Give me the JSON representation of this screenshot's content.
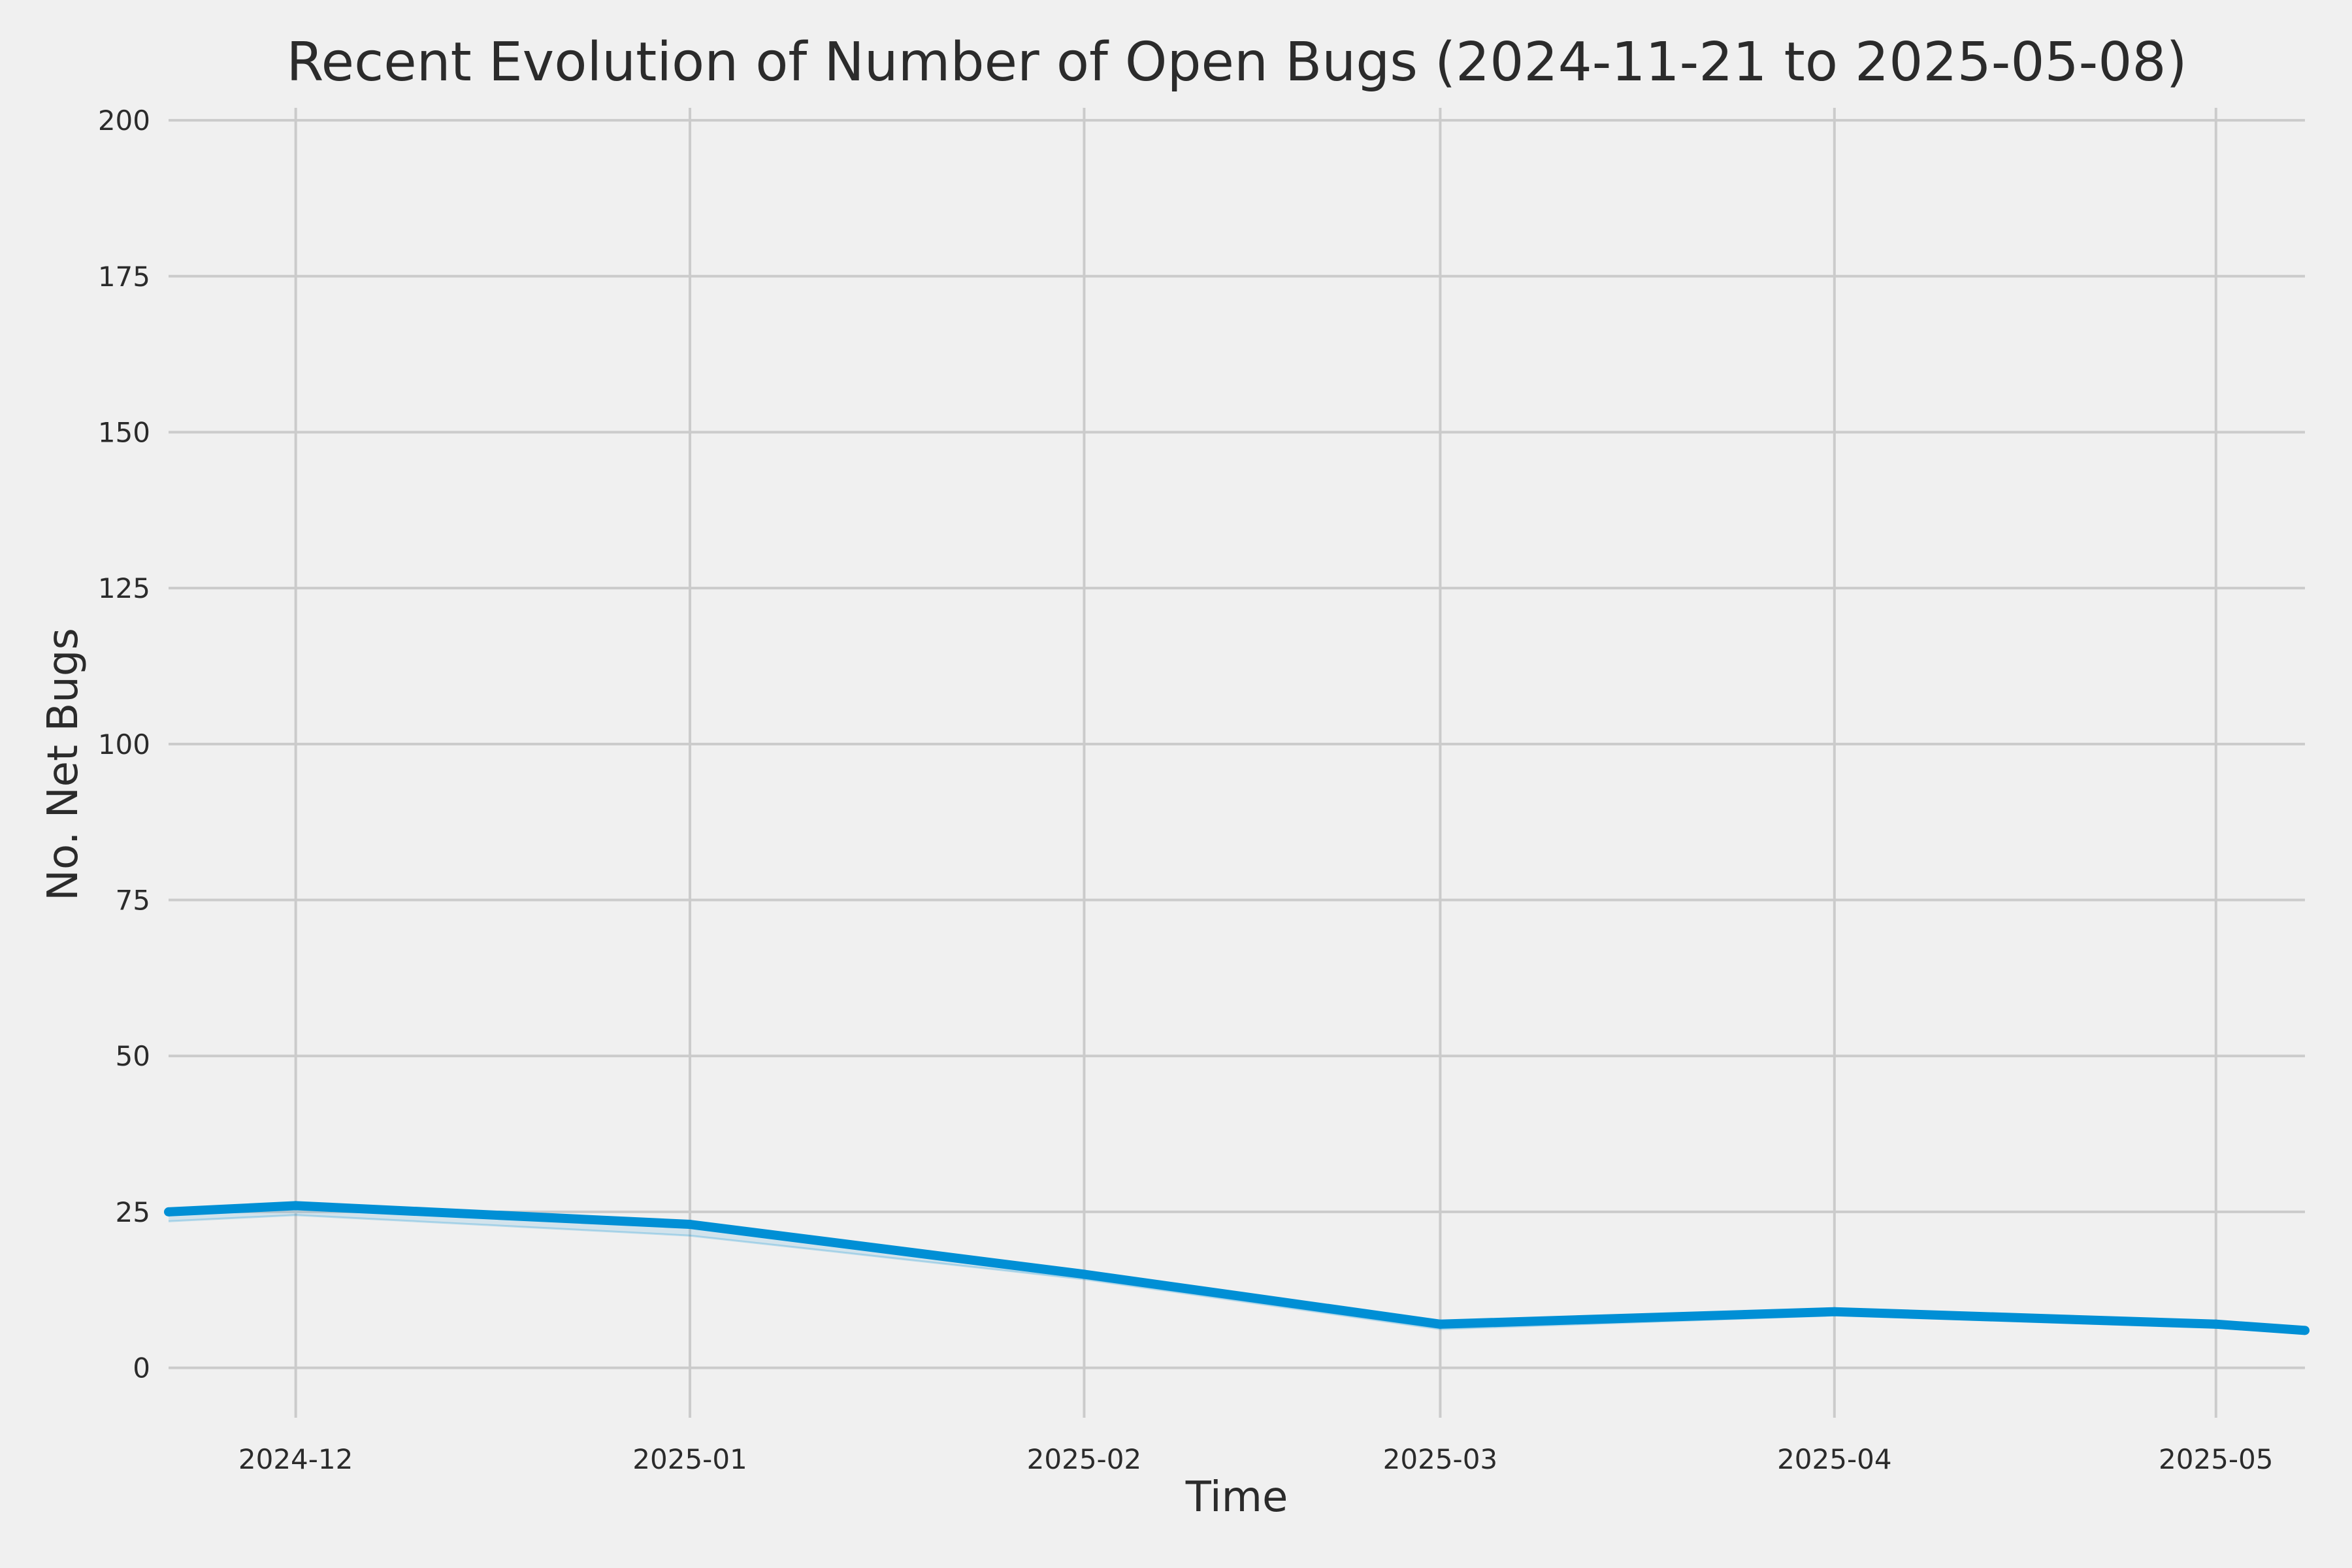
{
  "chart_data": {
    "type": "line",
    "title": "Recent Evolution of Number of Open Bugs (2024-11-21 to 2025-05-08)",
    "xlabel": "Time",
    "ylabel": "No. Net Bugs",
    "xlim": [
      "2024-11-21",
      "2025-05-08"
    ],
    "ylim": [
      -8,
      202
    ],
    "y_ticks": [
      0,
      25,
      50,
      75,
      100,
      125,
      150,
      175,
      200
    ],
    "x_ticks": [
      {
        "date": "2024-12-01",
        "label": "2024-12"
      },
      {
        "date": "2025-01-01",
        "label": "2025-01"
      },
      {
        "date": "2025-02-01",
        "label": "2025-02"
      },
      {
        "date": "2025-03-01",
        "label": "2025-03"
      },
      {
        "date": "2025-04-01",
        "label": "2025-04"
      },
      {
        "date": "2025-05-01",
        "label": "2025-05"
      }
    ],
    "grid": true,
    "series": [
      {
        "color": "#008fd5",
        "x": [
          "2024-11-21",
          "2024-12-01",
          "2025-01-01",
          "2025-02-01",
          "2025-03-01",
          "2025-04-01",
          "2025-05-01",
          "2025-05-08"
        ],
        "y": [
          25,
          26,
          23,
          15,
          7,
          9,
          7,
          6
        ],
        "band_lower": [
          23.5,
          24.5,
          21.2,
          14.2,
          6.2,
          8.4,
          6.4,
          5.6
        ]
      }
    ]
  }
}
